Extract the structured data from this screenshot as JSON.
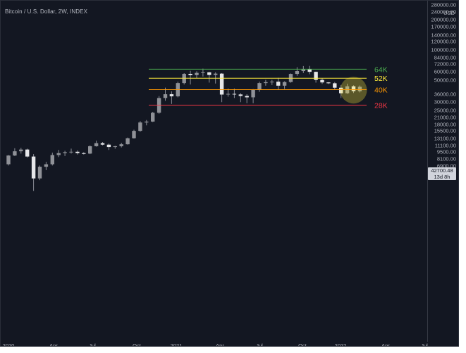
{
  "chart_title": "Bitcoin / U.S. Dollar, 2W, INDEX",
  "currency": "USD",
  "price_ticks": [
    "280000.00",
    "240000.00",
    "200000.00",
    "170000.00",
    "140000.00",
    "120000.00",
    "100000.00",
    "84000.00",
    "72000.00",
    "60000.00",
    "50000.00",
    "42700.48",
    "36000.00",
    "30000.00",
    "25000.00",
    "21000.00",
    "18000.00",
    "15500.00",
    "13100.00",
    "11100.00",
    "9500.00",
    "8100.00",
    "6900.00"
  ],
  "last_price": {
    "value": "42700.48",
    "countdown": "13d 8h"
  },
  "time_ticks": [
    "2020",
    "Apr",
    "Jul",
    "Oct",
    "2021",
    "Apr",
    "Jul",
    "Oct",
    "2022",
    "Apr",
    "Jul"
  ],
  "levels": [
    {
      "label": "64K",
      "value": 64000,
      "color": "#4caf50"
    },
    {
      "label": "52K",
      "value": 52000,
      "color": "#ffeb3b"
    },
    {
      "label": "40K",
      "value": 40000,
      "color": "#ff9800"
    },
    {
      "label": "28K",
      "value": 28000,
      "color": "#f23645"
    }
  ],
  "highlight_color": "#ffeb3b",
  "chart_data": {
    "type": "candlestick",
    "title": "Bitcoin / U.S. Dollar, 2W, INDEX",
    "y_scale": "log",
    "ylim": [
      6000,
      290000
    ],
    "candles": [
      {
        "o": 7200,
        "h": 8900,
        "l": 7000,
        "c": 8800
      },
      {
        "o": 8800,
        "h": 10400,
        "l": 8700,
        "c": 9700
      },
      {
        "o": 9700,
        "h": 10500,
        "l": 9200,
        "c": 10100
      },
      {
        "o": 10100,
        "h": 10300,
        "l": 8400,
        "c": 8600
      },
      {
        "o": 8600,
        "h": 9100,
        "l": 3900,
        "c": 5200
      },
      {
        "o": 5200,
        "h": 7000,
        "l": 5000,
        "c": 6800
      },
      {
        "o": 6800,
        "h": 7600,
        "l": 6300,
        "c": 7200
      },
      {
        "o": 7200,
        "h": 9400,
        "l": 7000,
        "c": 8900
      },
      {
        "o": 8900,
        "h": 10000,
        "l": 8500,
        "c": 9300
      },
      {
        "o": 9300,
        "h": 9800,
        "l": 8700,
        "c": 9500
      },
      {
        "o": 9500,
        "h": 10300,
        "l": 9200,
        "c": 9600
      },
      {
        "o": 9600,
        "h": 9900,
        "l": 9000,
        "c": 9300
      },
      {
        "o": 9300,
        "h": 9500,
        "l": 9000,
        "c": 9200
      },
      {
        "o": 9200,
        "h": 11100,
        "l": 9100,
        "c": 10900
      },
      {
        "o": 10900,
        "h": 12400,
        "l": 10800,
        "c": 11700
      },
      {
        "o": 11700,
        "h": 12000,
        "l": 11100,
        "c": 11300
      },
      {
        "o": 11300,
        "h": 11600,
        "l": 10000,
        "c": 10700
      },
      {
        "o": 10700,
        "h": 11000,
        "l": 10300,
        "c": 10900
      },
      {
        "o": 10900,
        "h": 11800,
        "l": 10600,
        "c": 11400
      },
      {
        "o": 11400,
        "h": 13300,
        "l": 11300,
        "c": 13100
      },
      {
        "o": 13100,
        "h": 15900,
        "l": 13000,
        "c": 15500
      },
      {
        "o": 15500,
        "h": 19400,
        "l": 15200,
        "c": 18800
      },
      {
        "o": 18800,
        "h": 19900,
        "l": 17600,
        "c": 19200
      },
      {
        "o": 19200,
        "h": 24000,
        "l": 19000,
        "c": 23500
      },
      {
        "o": 23500,
        "h": 34500,
        "l": 23000,
        "c": 33000
      },
      {
        "o": 33000,
        "h": 41900,
        "l": 31000,
        "c": 36000
      },
      {
        "o": 36000,
        "h": 38500,
        "l": 28800,
        "c": 34300
      },
      {
        "o": 34300,
        "h": 48000,
        "l": 33500,
        "c": 46500
      },
      {
        "o": 46500,
        "h": 58400,
        "l": 45000,
        "c": 57500
      },
      {
        "o": 57500,
        "h": 61700,
        "l": 45000,
        "c": 55800
      },
      {
        "o": 55800,
        "h": 61000,
        "l": 52000,
        "c": 58800
      },
      {
        "o": 58800,
        "h": 64800,
        "l": 54000,
        "c": 59500
      },
      {
        "o": 59500,
        "h": 60000,
        "l": 47000,
        "c": 56000
      },
      {
        "o": 56000,
        "h": 59500,
        "l": 46000,
        "c": 57800
      },
      {
        "o": 57800,
        "h": 58500,
        "l": 30000,
        "c": 35700
      },
      {
        "o": 35700,
        "h": 41000,
        "l": 34000,
        "c": 36300
      },
      {
        "o": 36300,
        "h": 41000,
        "l": 33000,
        "c": 35800
      },
      {
        "o": 35800,
        "h": 37000,
        "l": 30000,
        "c": 34600
      },
      {
        "o": 34600,
        "h": 36000,
        "l": 29300,
        "c": 33500
      },
      {
        "o": 33500,
        "h": 40500,
        "l": 29300,
        "c": 39800
      },
      {
        "o": 39800,
        "h": 48000,
        "l": 38000,
        "c": 46500
      },
      {
        "o": 46500,
        "h": 50000,
        "l": 43800,
        "c": 47500
      },
      {
        "o": 47500,
        "h": 50000,
        "l": 44500,
        "c": 48000
      },
      {
        "o": 48000,
        "h": 52500,
        "l": 39800,
        "c": 43800
      },
      {
        "o": 43800,
        "h": 48400,
        "l": 40600,
        "c": 47600
      },
      {
        "o": 47600,
        "h": 57900,
        "l": 46900,
        "c": 57400
      },
      {
        "o": 57400,
        "h": 67000,
        "l": 55000,
        "c": 61300
      },
      {
        "o": 61300,
        "h": 68800,
        "l": 58600,
        "c": 64400
      },
      {
        "o": 64400,
        "h": 69000,
        "l": 57000,
        "c": 60200
      },
      {
        "o": 60200,
        "h": 60500,
        "l": 47000,
        "c": 50000
      },
      {
        "o": 50000,
        "h": 51900,
        "l": 45600,
        "c": 47200
      },
      {
        "o": 47200,
        "h": 47500,
        "l": 45500,
        "c": 46300
      },
      {
        "o": 46300,
        "h": 47600,
        "l": 40000,
        "c": 41800
      },
      {
        "o": 41800,
        "h": 44500,
        "l": 33000,
        "c": 36800
      },
      {
        "o": 36800,
        "h": 45800,
        "l": 36300,
        "c": 43200
      },
      {
        "o": 43200,
        "h": 44200,
        "l": 37000,
        "c": 38600
      },
      {
        "o": 38600,
        "h": 44000,
        "l": 37500,
        "c": 42700
      }
    ]
  }
}
